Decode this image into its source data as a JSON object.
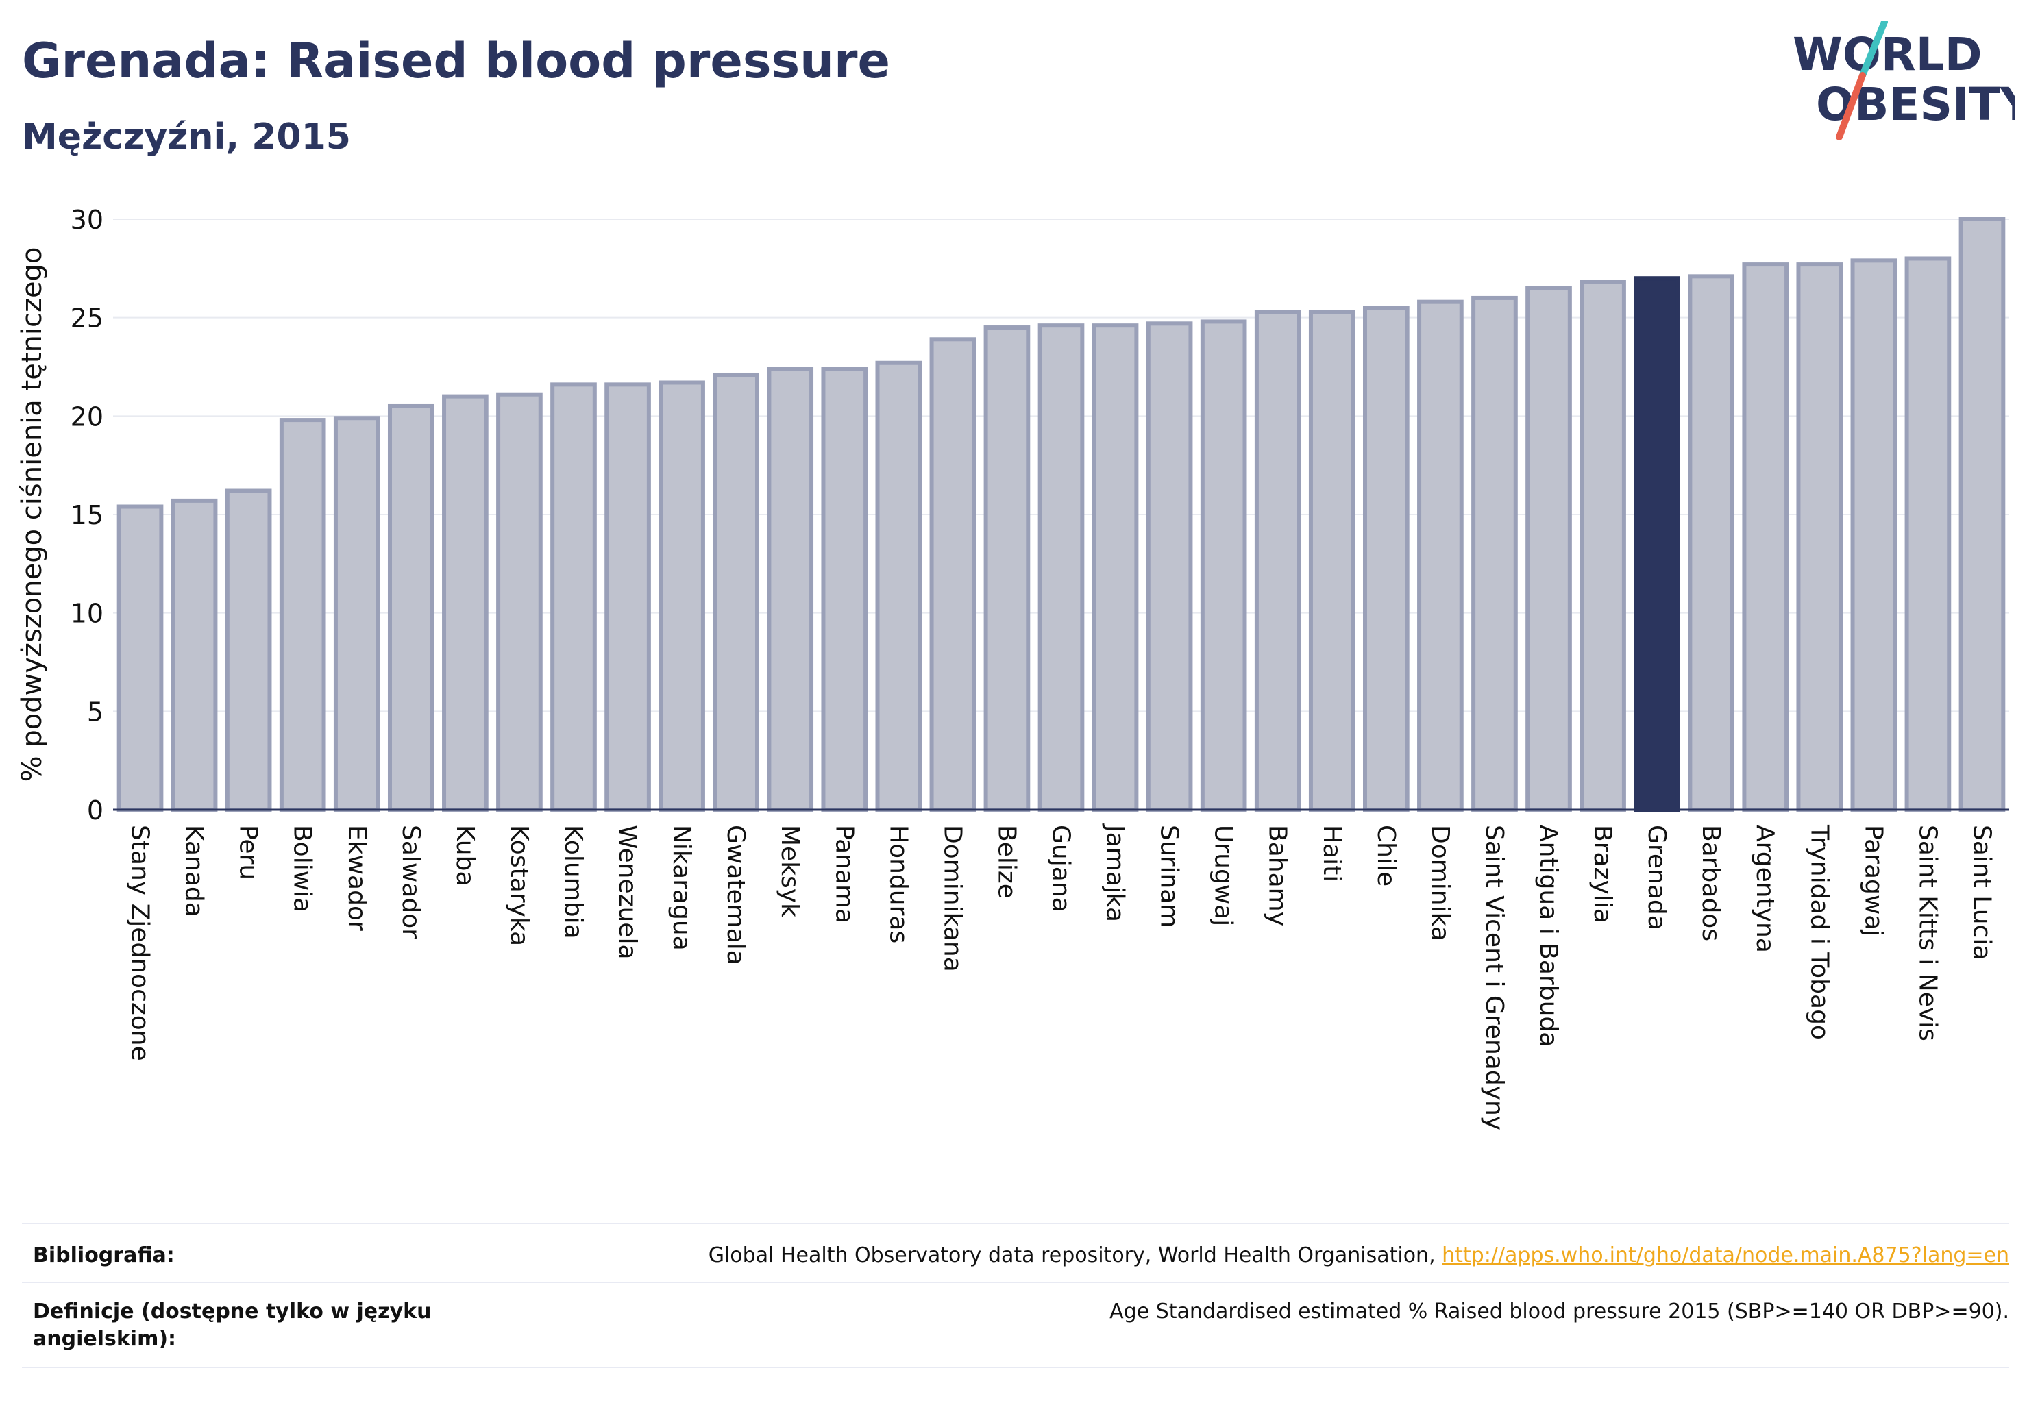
{
  "header": {
    "title": "Grenada: Raised blood pressure",
    "subtitle": "Mężczyźni, 2015"
  },
  "logo": {
    "line1": "WORLD",
    "line2": "OBESITY",
    "accent_colors": [
      "#3fc1c0",
      "#e8604c"
    ]
  },
  "colors": {
    "bar_fill": "#bfc2ce",
    "bar_stroke": "#9aa0b8",
    "highlight": "#2b355e",
    "grid": "#e8eaf0",
    "axis": "#2b355e"
  },
  "chart_data": {
    "type": "bar",
    "ylabel": "% podwyższonego ciśnienia tętniczego",
    "xlabel": "",
    "ylim": [
      0,
      30
    ],
    "yticks": [
      "0",
      "5",
      "10",
      "15",
      "20",
      "25",
      "30"
    ],
    "highlight": "Grenada",
    "grid": true,
    "categories": [
      "Stany Zjednoczone",
      "Kanada",
      "Peru",
      "Boliwia",
      "Ekwador",
      "Salwador",
      "Kuba",
      "Kostaryka",
      "Kolumbia",
      "Wenezuela",
      "Nikaragua",
      "Gwatemala",
      "Meksyk",
      "Panama",
      "Honduras",
      "Dominikana",
      "Belize",
      "Gujana",
      "Jamajka",
      "Surinam",
      "Urugwaj",
      "Bahamy",
      "Haiti",
      "Chile",
      "Dominika",
      "Saint Vicent i Grenadyny",
      "Antigua i Barbuda",
      "Brazylia",
      "Grenada",
      "Barbados",
      "Argentyna",
      "Trynidad i Tobago",
      "Paragwaj",
      "Saint Kitts i Nevis",
      "Saint Lucia"
    ],
    "values": [
      15.4,
      15.7,
      16.2,
      19.8,
      19.9,
      20.5,
      21.0,
      21.1,
      21.6,
      21.6,
      21.7,
      22.1,
      22.4,
      22.4,
      22.7,
      23.9,
      24.5,
      24.6,
      24.6,
      24.7,
      24.8,
      25.3,
      25.3,
      25.5,
      25.8,
      26.0,
      26.5,
      26.8,
      27.0,
      27.1,
      27.7,
      27.7,
      27.9,
      28.0,
      30.0
    ]
  },
  "footer": {
    "bibliography_label": "Bibliografia:",
    "bibliography_text": "Global Health Observatory data repository, World Health Organisation, ",
    "bibliography_link": "http://apps.who.int/gho/data/node.main.A875?lang=en",
    "definitions_label_1": "Definicje (dostępne tylko w języku",
    "definitions_label_2": "angielskim):",
    "definitions_text": "Age Standardised estimated % Raised blood pressure 2015 (SBP>=140 OR DBP>=90)."
  }
}
